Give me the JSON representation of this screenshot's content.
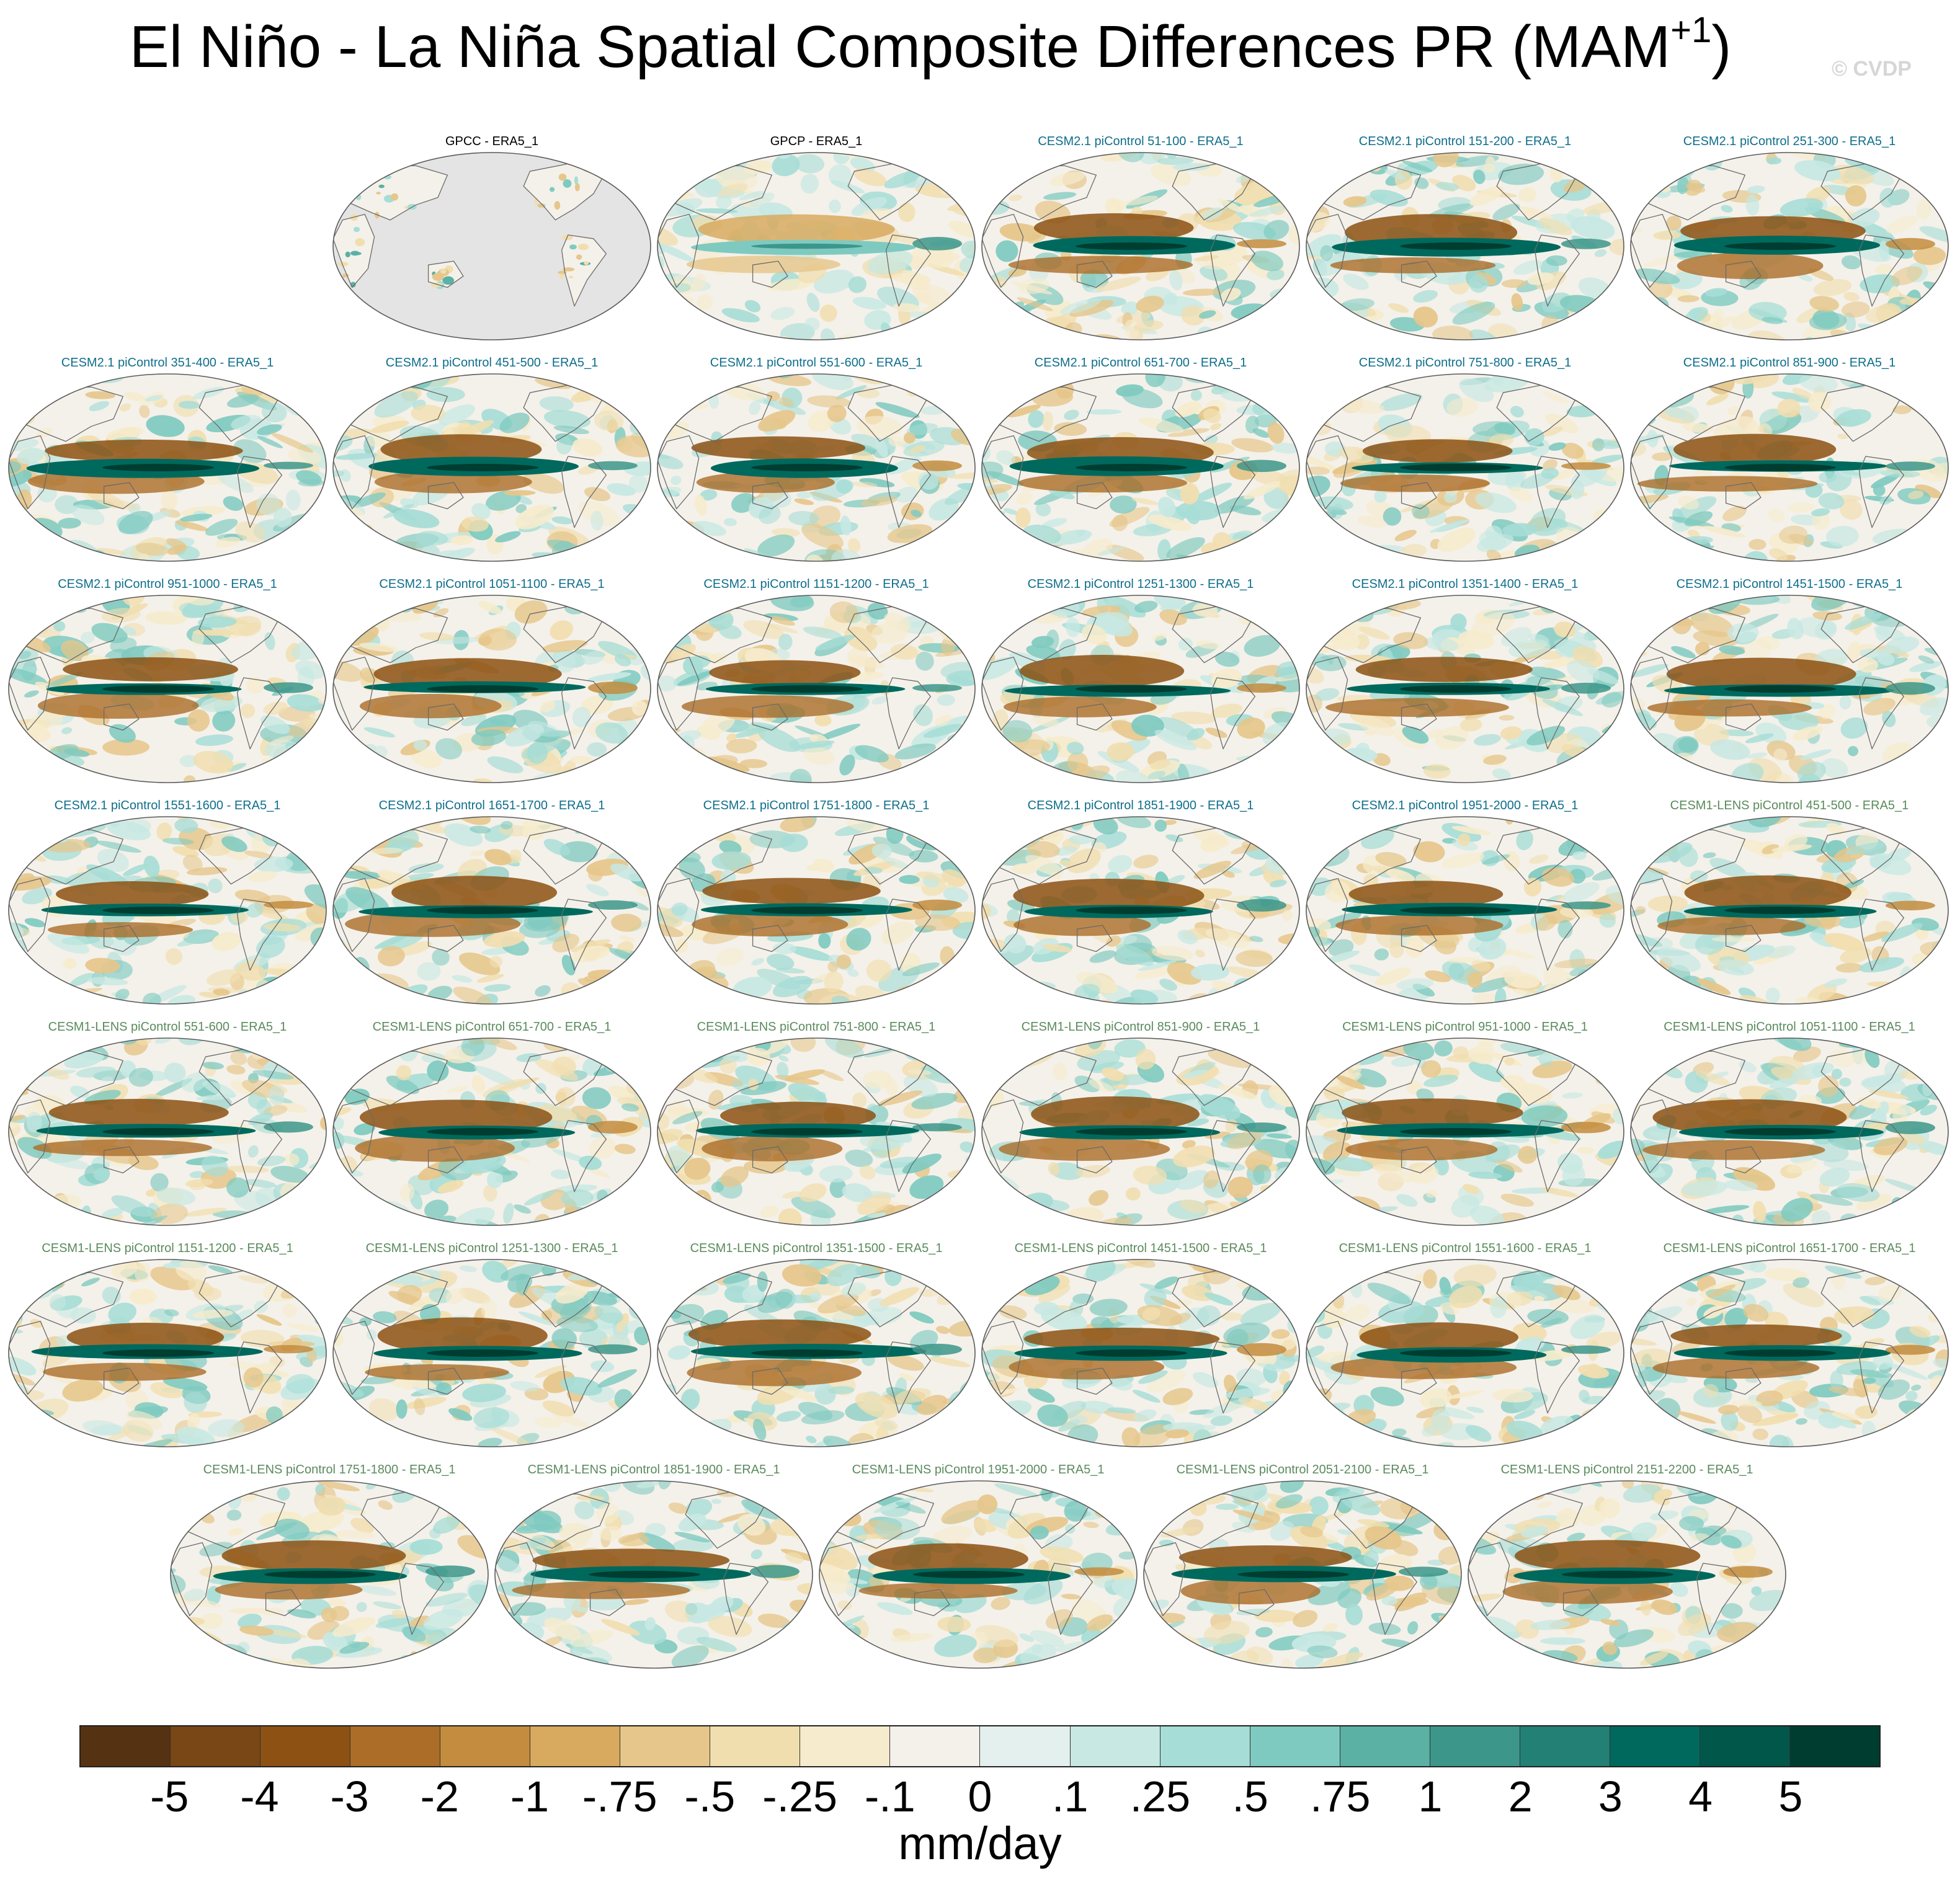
{
  "title": {
    "main": "El Niño - La Niña Spatial Composite Differences PR (MAM",
    "superscript": "+1",
    "close": ")"
  },
  "watermark": "© CVDP",
  "title_colors": {
    "obs": "#000000",
    "cesm2": "#0f6e8c",
    "cesm1": "#5a8a5c"
  },
  "panels": [
    {
      "title": "GPCC - ERA5_1",
      "group": "obs",
      "coverage": "land"
    },
    {
      "title": "GPCP - ERA5_1",
      "group": "obs",
      "coverage": "global"
    },
    {
      "title": "CESM2.1 piControl 51-100 - ERA5_1",
      "group": "cesm2",
      "coverage": "global"
    },
    {
      "title": "CESM2.1 piControl 151-200 - ERA5_1",
      "group": "cesm2",
      "coverage": "global"
    },
    {
      "title": "CESM2.1 piControl 251-300 - ERA5_1",
      "group": "cesm2",
      "coverage": "global"
    },
    {
      "title": "CESM2.1 piControl 351-400 - ERA5_1",
      "group": "cesm2",
      "coverage": "global"
    },
    {
      "title": "CESM2.1 piControl 451-500 - ERA5_1",
      "group": "cesm2",
      "coverage": "global"
    },
    {
      "title": "CESM2.1 piControl 551-600 - ERA5_1",
      "group": "cesm2",
      "coverage": "global"
    },
    {
      "title": "CESM2.1 piControl 651-700 - ERA5_1",
      "group": "cesm2",
      "coverage": "global"
    },
    {
      "title": "CESM2.1 piControl 751-800 - ERA5_1",
      "group": "cesm2",
      "coverage": "global"
    },
    {
      "title": "CESM2.1 piControl 851-900 - ERA5_1",
      "group": "cesm2",
      "coverage": "global"
    },
    {
      "title": "CESM2.1 piControl 951-1000 - ERA5_1",
      "group": "cesm2",
      "coverage": "global"
    },
    {
      "title": "CESM2.1 piControl 1051-1100 - ERA5_1",
      "group": "cesm2",
      "coverage": "global"
    },
    {
      "title": "CESM2.1 piControl 1151-1200 - ERA5_1",
      "group": "cesm2",
      "coverage": "global"
    },
    {
      "title": "CESM2.1 piControl 1251-1300 - ERA5_1",
      "group": "cesm2",
      "coverage": "global"
    },
    {
      "title": "CESM2.1 piControl 1351-1400 - ERA5_1",
      "group": "cesm2",
      "coverage": "global"
    },
    {
      "title": "CESM2.1 piControl 1451-1500 - ERA5_1",
      "group": "cesm2",
      "coverage": "global"
    },
    {
      "title": "CESM2.1 piControl 1551-1600 - ERA5_1",
      "group": "cesm2",
      "coverage": "global"
    },
    {
      "title": "CESM2.1 piControl 1651-1700 - ERA5_1",
      "group": "cesm2",
      "coverage": "global"
    },
    {
      "title": "CESM2.1 piControl 1751-1800 - ERA5_1",
      "group": "cesm2",
      "coverage": "global"
    },
    {
      "title": "CESM2.1 piControl 1851-1900 - ERA5_1",
      "group": "cesm2",
      "coverage": "global"
    },
    {
      "title": "CESM2.1 piControl 1951-2000 - ERA5_1",
      "group": "cesm2",
      "coverage": "global"
    },
    {
      "title": "CESM1-LENS piControl 451-500 - ERA5_1",
      "group": "cesm1",
      "coverage": "global"
    },
    {
      "title": "CESM1-LENS piControl 551-600 - ERA5_1",
      "group": "cesm1",
      "coverage": "global"
    },
    {
      "title": "CESM1-LENS piControl 651-700 - ERA5_1",
      "group": "cesm1",
      "coverage": "global"
    },
    {
      "title": "CESM1-LENS piControl 751-800 - ERA5_1",
      "group": "cesm1",
      "coverage": "global"
    },
    {
      "title": "CESM1-LENS piControl 851-900 - ERA5_1",
      "group": "cesm1",
      "coverage": "global"
    },
    {
      "title": "CESM1-LENS piControl 951-1000 - ERA5_1",
      "group": "cesm1",
      "coverage": "global"
    },
    {
      "title": "CESM1-LENS piControl 1051-1100 - ERA5_1",
      "group": "cesm1",
      "coverage": "global"
    },
    {
      "title": "CESM1-LENS piControl 1151-1200 - ERA5_1",
      "group": "cesm1",
      "coverage": "global"
    },
    {
      "title": "CESM1-LENS piControl 1251-1300 - ERA5_1",
      "group": "cesm1",
      "coverage": "global"
    },
    {
      "title": "CESM1-LENS piControl 1351-1500 - ERA5_1",
      "group": "cesm1",
      "coverage": "global"
    },
    {
      "title": "CESM1-LENS piControl 1451-1500 - ERA5_1",
      "group": "cesm1",
      "coverage": "global"
    },
    {
      "title": "CESM1-LENS piControl 1551-1600 - ERA5_1",
      "group": "cesm1",
      "coverage": "global"
    },
    {
      "title": "CESM1-LENS piControl 1651-1700 - ERA5_1",
      "group": "cesm1",
      "coverage": "global"
    },
    {
      "title": "CESM1-LENS piControl 1751-1800 - ERA5_1",
      "group": "cesm1",
      "coverage": "global"
    },
    {
      "title": "CESM1-LENS piControl 1851-1900 - ERA5_1",
      "group": "cesm1",
      "coverage": "global"
    },
    {
      "title": "CESM1-LENS piControl 1951-2000 - ERA5_1",
      "group": "cesm1",
      "coverage": "global"
    },
    {
      "title": "CESM1-LENS piControl 2051-2100 - ERA5_1",
      "group": "cesm1",
      "coverage": "global"
    },
    {
      "title": "CESM1-LENS piControl 2151-2200 - ERA5_1",
      "group": "cesm1",
      "coverage": "global"
    }
  ],
  "map_colors": {
    "ocean_neutral": "#f4f1ea",
    "missing": "#e4e4e4",
    "coastline": "#6a6a6a",
    "strong_wet": "#00574a",
    "strong_dry": "#8c5716"
  },
  "colorbar": {
    "colors": [
      "#553211",
      "#784715",
      "#8c5113",
      "#ab6d28",
      "#c38c3e",
      "#d8aa5f",
      "#e6c68a",
      "#f1deaf",
      "#f6ebcc",
      "#f4f1ea",
      "#e3f0ed",
      "#c7e8e3",
      "#a6ddd6",
      "#7fcac0",
      "#5ab1a4",
      "#3c978a",
      "#228075",
      "#00695d",
      "#00574a",
      "#003d31"
    ],
    "labels": [
      "-5",
      "-4",
      "-3",
      "-2",
      "-1",
      "-.75",
      "-.5",
      "-.25",
      "-.1",
      "0",
      ".1",
      ".25",
      ".5",
      ".75",
      "1",
      "2",
      "3",
      "4",
      "5"
    ],
    "units": "mm/day"
  }
}
